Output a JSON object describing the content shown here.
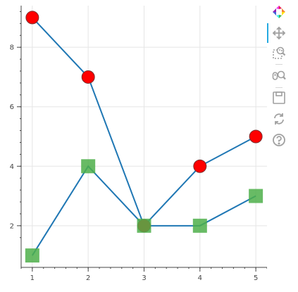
{
  "chart_data": {
    "type": "line",
    "xlim": [
      0.8,
      5.2
    ],
    "ylim": [
      0.6,
      9.4
    ],
    "xticks": [
      1,
      2,
      3,
      4,
      5
    ],
    "yticks": [
      2,
      4,
      6,
      8
    ],
    "grid": true,
    "series": [
      {
        "x": [
          1,
          2,
          3,
          4,
          5
        ],
        "y": [
          9,
          7,
          2,
          4,
          5
        ],
        "line_color": "#1f77b4",
        "marker": "circle",
        "marker_color": "#ff0000"
      },
      {
        "x": [
          1,
          2,
          3,
          4,
          5
        ],
        "y": [
          1,
          4,
          2,
          2,
          3
        ],
        "line_color": "#1f77b4",
        "marker": "square",
        "marker_color": "#4daf4a"
      }
    ]
  },
  "toolbar": {
    "tools": [
      {
        "name": "bokeh-logo-icon",
        "interactable": false
      },
      {
        "name": "pan-tool-icon",
        "interactable": true,
        "active": true
      },
      {
        "name": "box-zoom-tool-icon",
        "interactable": true
      },
      {
        "name": "wheel-zoom-tool-icon",
        "interactable": true
      },
      {
        "name": "save-tool-icon",
        "interactable": true
      },
      {
        "name": "reset-tool-icon",
        "interactable": true
      },
      {
        "name": "help-tool-icon",
        "interactable": true
      }
    ]
  }
}
